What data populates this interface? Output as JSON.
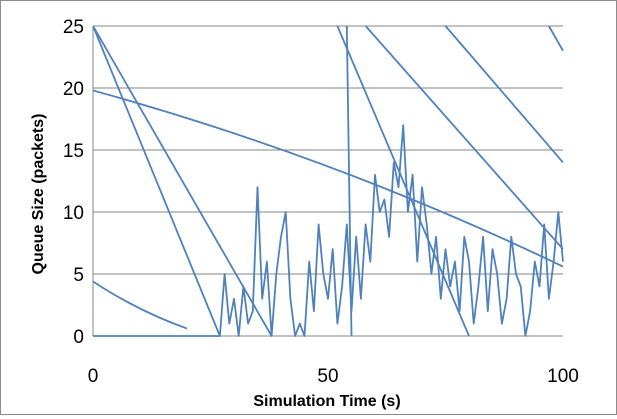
{
  "chart_data": {
    "type": "line",
    "title": "",
    "xlabel": "Simulation Time (s)",
    "ylabel": "Queue Size (packets)",
    "xlim": [
      0,
      100
    ],
    "ylim": [
      0,
      25
    ],
    "x_ticks": [
      "0",
      "50",
      "100"
    ],
    "y_ticks": [
      "0",
      "5",
      "10",
      "15",
      "20",
      "25"
    ],
    "grid": "horizontal",
    "legend": "none",
    "line_color": "#4f81bd",
    "series": [
      {
        "x": [
          0,
          5,
          10,
          15,
          20,
          25,
          27,
          28,
          29,
          30,
          31,
          32,
          33,
          34,
          35,
          36,
          37,
          38,
          39,
          40,
          41,
          42,
          43,
          44,
          45,
          46,
          47,
          48,
          49,
          50,
          51,
          52,
          53,
          54,
          55,
          56,
          57,
          58,
          59,
          60,
          61,
          62,
          63,
          64,
          65,
          66,
          67,
          68,
          69,
          70,
          71,
          72,
          73,
          74,
          75,
          76,
          77,
          78,
          79,
          80,
          81,
          82,
          83,
          84,
          85,
          86,
          87,
          88,
          89,
          90,
          91,
          92,
          93,
          94,
          95,
          96,
          97,
          98,
          99,
          100
        ],
        "y": [
          0,
          0,
          0,
          0,
          0,
          0,
          0,
          5,
          1,
          3,
          0,
          4,
          1,
          2,
          12,
          3,
          6,
          0,
          5,
          8,
          10,
          3,
          0,
          1,
          0,
          6,
          2,
          9,
          5,
          3,
          7,
          1,
          4,
          9,
          2,
          8,
          3,
          9,
          6,
          13,
          10,
          11,
          8,
          14,
          12,
          17,
          10,
          13,
          6,
          12,
          9,
          5,
          8,
          3,
          7,
          4,
          6,
          2,
          8,
          6,
          1,
          4,
          8,
          2,
          7,
          5,
          1,
          3,
          8,
          5,
          4,
          0,
          2,
          6,
          4,
          9,
          3,
          6,
          10,
          6
        ]
      },
      {
        "x": [
          0,
          100
        ],
        "y": [
          19.8,
          5.6
        ],
        "curve": 0.3
      },
      {
        "x": [
          0,
          20
        ],
        "y": [
          4.4,
          0.6
        ],
        "curve": -0.4
      },
      {
        "x": [
          0,
          38
        ],
        "y": [
          25,
          0
        ]
      },
      {
        "x": [
          0,
          27
        ],
        "y": [
          25,
          0
        ]
      },
      {
        "x": [
          52,
          80
        ],
        "y": [
          25,
          0
        ]
      },
      {
        "x": [
          58,
          100
        ],
        "y": [
          25,
          7
        ]
      },
      {
        "x": [
          75,
          100
        ],
        "y": [
          25,
          14
        ]
      },
      {
        "x": [
          54,
          55
        ],
        "y": [
          25,
          0
        ]
      },
      {
        "x": [
          97,
          100
        ],
        "y": [
          25,
          23
        ]
      }
    ]
  }
}
